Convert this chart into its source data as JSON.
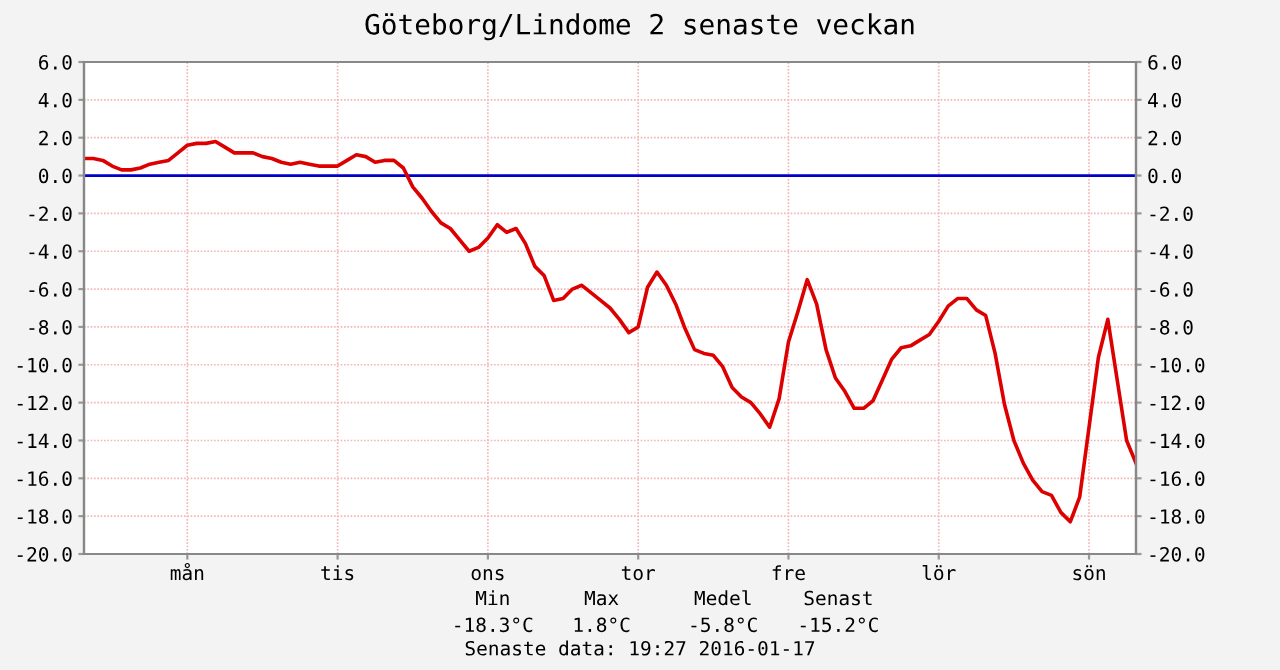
{
  "chart_data": {
    "type": "line",
    "title": "Göteborg/Lindome 2 senaste veckan",
    "categories": [
      null,
      null,
      null,
      null,
      null,
      null,
      null,
      null,
      null,
      null,
      null,
      "mån",
      null,
      null,
      null,
      null,
      null,
      null,
      null,
      null,
      null,
      null,
      null,
      null,
      null,
      null,
      null,
      "tis",
      null,
      null,
      null,
      null,
      null,
      null,
      null,
      null,
      null,
      null,
      null,
      null,
      null,
      null,
      null,
      "ons",
      null,
      null,
      null,
      null,
      null,
      null,
      null,
      null,
      null,
      null,
      null,
      null,
      null,
      null,
      null,
      "tor",
      null,
      null,
      null,
      null,
      null,
      null,
      null,
      null,
      null,
      null,
      null,
      null,
      null,
      null,
      null,
      "fre",
      null,
      null,
      null,
      null,
      null,
      null,
      null,
      null,
      null,
      null,
      null,
      null,
      null,
      null,
      null,
      "lör",
      null,
      null,
      null,
      null,
      null,
      null,
      null,
      null,
      null,
      null,
      null,
      null,
      null,
      null,
      null,
      "sön",
      null,
      null,
      null,
      null,
      null
    ],
    "series": [
      {
        "color": "#dd0000",
        "values": [
          0.9,
          0.9,
          0.8,
          0.5,
          0.3,
          0.3,
          0.4,
          0.6,
          0.7,
          0.8,
          1.2,
          1.6,
          1.7,
          1.7,
          1.8,
          1.5,
          1.2,
          1.2,
          1.2,
          1.0,
          0.9,
          0.7,
          0.6,
          0.7,
          0.6,
          0.5,
          0.5,
          0.5,
          0.8,
          1.1,
          1.0,
          0.7,
          0.8,
          0.8,
          0.4,
          -0.6,
          -1.2,
          -1.9,
          -2.5,
          -2.8,
          -3.4,
          -4.0,
          -3.8,
          -3.3,
          -2.6,
          -3.0,
          -2.8,
          -3.6,
          -4.8,
          -5.3,
          -6.6,
          -6.5,
          -6.0,
          -5.8,
          -6.2,
          -6.6,
          -7.0,
          -7.6,
          -8.3,
          -8.0,
          -5.9,
          -5.1,
          -5.8,
          -6.8,
          -8.1,
          -9.2,
          -9.4,
          -9.5,
          -10.1,
          -11.2,
          -11.7,
          -12.0,
          -12.6,
          -13.3,
          -11.8,
          -8.8,
          -7.2,
          -5.5,
          -6.8,
          -9.2,
          -10.7,
          -11.4,
          -12.3,
          -12.3,
          -11.9,
          -10.8,
          -9.7,
          -9.1,
          -9.0,
          -8.7,
          -8.4,
          -7.7,
          -6.9,
          -6.5,
          -6.5,
          -7.1,
          -7.4,
          -9.4,
          -12.1,
          -14.0,
          -15.2,
          -16.1,
          -16.7,
          -16.9,
          -17.8,
          -18.3,
          -17.0,
          -13.3,
          -9.6,
          -7.6,
          -10.8,
          -14.0,
          -15.2
        ]
      }
    ],
    "ylim": [
      -20,
      6
    ],
    "yticks": [
      {
        "value": -20,
        "label": "-20.0"
      },
      {
        "value": -18,
        "label": "-18.0"
      },
      {
        "value": -16,
        "label": "-16.0"
      },
      {
        "value": -14,
        "label": "-14.0"
      },
      {
        "value": -12,
        "label": "-12.0"
      },
      {
        "value": -10,
        "label": "-10.0"
      },
      {
        "value": -8,
        "label": "-8.0"
      },
      {
        "value": -6,
        "label": "-6.0"
      },
      {
        "value": -4,
        "label": "-4.0"
      },
      {
        "value": -2,
        "label": "-2.0"
      },
      {
        "value": 0,
        "label": "0.0"
      },
      {
        "value": 2,
        "label": "2.0"
      },
      {
        "value": 4,
        "label": "4.0"
      },
      {
        "value": 6,
        "label": "6.0"
      }
    ],
    "y2lim": [
      -20,
      6
    ],
    "y2ticks": [
      {
        "value": -20,
        "label": "-20.0"
      },
      {
        "value": -18,
        "label": "-18.0"
      },
      {
        "value": -16,
        "label": "-16.0"
      },
      {
        "value": -14,
        "label": "-14.0"
      },
      {
        "value": -12,
        "label": "-12.0"
      },
      {
        "value": -10,
        "label": "-10.0"
      },
      {
        "value": -8,
        "label": "-8.0"
      },
      {
        "value": -6,
        "label": "-6.0"
      },
      {
        "value": -4,
        "label": "-4.0"
      },
      {
        "value": -2,
        "label": "-2.0"
      },
      {
        "value": 0,
        "label": "0.0"
      },
      {
        "value": 2,
        "label": "2.0"
      },
      {
        "value": 4,
        "label": "4.0"
      },
      {
        "value": 6,
        "label": "6.0"
      }
    ],
    "ref_lines": [
      {
        "axis": "y",
        "value": 0,
        "color": "#0000cc"
      }
    ],
    "grid": true,
    "annotations": [
      "Min",
      "Max",
      "Medel",
      "Senast",
      "-18.3°C",
      "1.8°C",
      "-5.8°C",
      "-15.2°C",
      "Senaste data: 19:27 2016-01-17"
    ]
  }
}
